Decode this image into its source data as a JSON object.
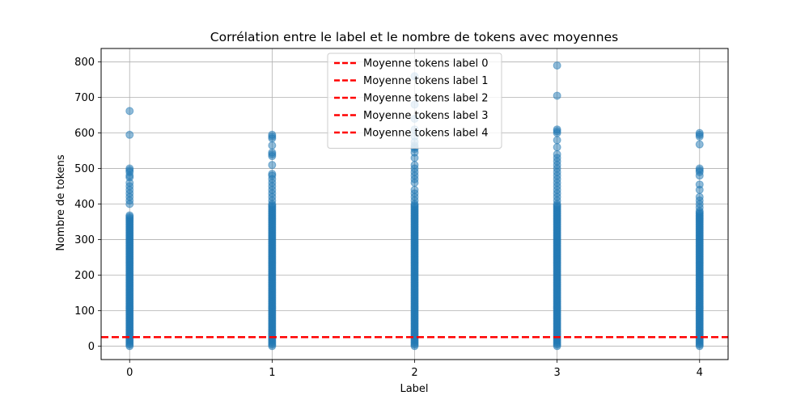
{
  "chart_data": {
    "type": "scatter",
    "title": "Corrélation entre le label et le nombre de tokens avec moyennes",
    "xlabel": "Label",
    "ylabel": "Nombre de tokens",
    "xlim": [
      -0.2,
      4.2
    ],
    "ylim": [
      -38,
      838
    ],
    "x_ticks": [
      0,
      1,
      2,
      3,
      4
    ],
    "y_ticks": [
      0,
      100,
      200,
      300,
      400,
      500,
      600,
      700,
      800
    ],
    "grid": true,
    "legend_position": "upper center",
    "point_color": "#1f77b4",
    "point_alpha": 0.5,
    "series": [
      {
        "x": 0,
        "dense_range": [
          0,
          370
        ],
        "points": [
          400,
          410,
          420,
          430,
          440,
          450,
          460,
          475,
          480,
          490,
          495,
          500,
          595,
          662
        ]
      },
      {
        "x": 1,
        "dense_range": [
          0,
          400
        ],
        "points": [
          410,
          420,
          430,
          440,
          450,
          460,
          470,
          480,
          485,
          510,
          535,
          540,
          545,
          565,
          585,
          590,
          595
        ]
      },
      {
        "x": 2,
        "dense_range": [
          0,
          400
        ],
        "points": [
          410,
          420,
          430,
          440,
          460,
          470,
          480,
          490,
          500,
          510,
          530,
          545,
          555,
          560,
          565,
          575,
          590,
          610,
          640,
          680,
          760
        ]
      },
      {
        "x": 3,
        "dense_range": [
          0,
          400
        ],
        "points": [
          410,
          420,
          430,
          440,
          450,
          460,
          470,
          480,
          490,
          500,
          510,
          520,
          530,
          540,
          560,
          580,
          600,
          605,
          610,
          705,
          790
        ]
      },
      {
        "x": 4,
        "dense_range": [
          0,
          380
        ],
        "points": [
          390,
          400,
          410,
          420,
          440,
          455,
          480,
          490,
          495,
          500,
          568,
          590,
          595,
          600
        ]
      }
    ],
    "mean_lines": [
      {
        "name": "Moyenne tokens label 0",
        "value": 25,
        "color": "#ff0000"
      },
      {
        "name": "Moyenne tokens label 1",
        "value": 25,
        "color": "#ff0000"
      },
      {
        "name": "Moyenne tokens label 2",
        "value": 25,
        "color": "#ff0000"
      },
      {
        "name": "Moyenne tokens label 3",
        "value": 25,
        "color": "#ff0000"
      },
      {
        "name": "Moyenne tokens label 4",
        "value": 25,
        "color": "#ff0000"
      }
    ]
  }
}
